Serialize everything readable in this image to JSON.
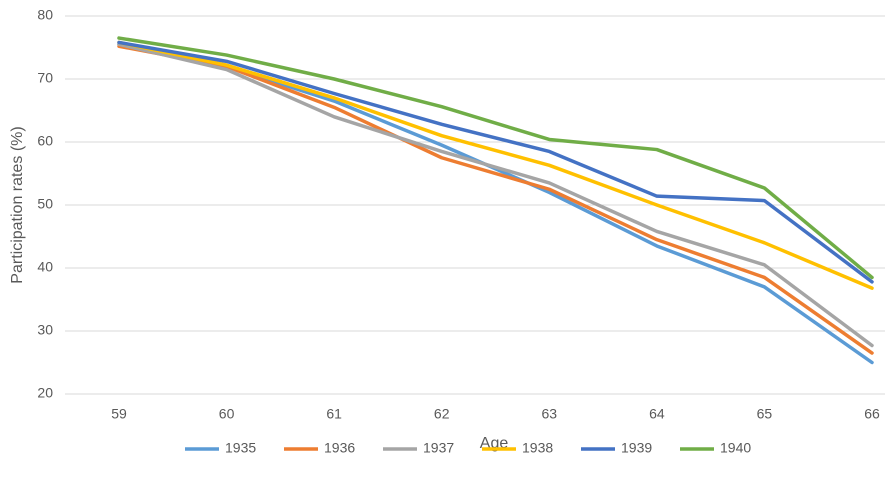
{
  "chart_data": {
    "type": "line",
    "x_label": "Age",
    "y_label": "Participation rates (%)",
    "categories": [
      "59",
      "60",
      "61",
      "62",
      "63",
      "64",
      "65",
      "66"
    ],
    "ylim": [
      20,
      80
    ],
    "yticks": [
      20,
      30,
      40,
      50,
      60,
      70,
      80
    ],
    "grid": true,
    "legend": "bottom",
    "series": [
      {
        "name": "1935",
        "color": "#5b9bd5",
        "values": [
          75.5,
          72,
          66.5,
          59.5,
          52,
          43.5,
          37,
          25
        ]
      },
      {
        "name": "1936",
        "color": "#ed7d31",
        "values": [
          75.2,
          72,
          65.5,
          57.5,
          52.5,
          44.5,
          38.5,
          26.5
        ]
      },
      {
        "name": "1937",
        "color": "#a5a5a5",
        "values": [
          75.5,
          71.5,
          64,
          58.5,
          53.5,
          45.8,
          40.5,
          27.7
        ]
      },
      {
        "name": "1938",
        "color": "#ffc000",
        "values": [
          75.8,
          72.2,
          67,
          61,
          56.3,
          50,
          44,
          36.8
        ]
      },
      {
        "name": "1939",
        "color": "#4472c4",
        "values": [
          75.8,
          72.8,
          67.7,
          62.8,
          58.5,
          51.4,
          50.7,
          37.8
        ]
      },
      {
        "name": "1940",
        "color": "#70ad47",
        "values": [
          76.5,
          73.8,
          70,
          65.6,
          60.4,
          58.8,
          52.7,
          38.5
        ]
      }
    ]
  }
}
